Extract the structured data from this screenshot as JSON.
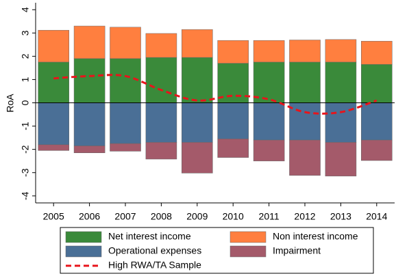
{
  "chart_data": {
    "type": "bar",
    "stacked": true,
    "y_label": "RoA",
    "categories": [
      "2005",
      "2006",
      "2007",
      "2008",
      "2009",
      "2010",
      "2011",
      "2012",
      "2013",
      "2014"
    ],
    "series": [
      {
        "name": "Net interest income",
        "color": "#3a8a3a",
        "values": [
          1.75,
          1.9,
          1.9,
          1.95,
          1.95,
          1.7,
          1.75,
          1.75,
          1.75,
          1.65
        ]
      },
      {
        "name": "Non interest income",
        "color": "#ff7f3f",
        "values": [
          1.37,
          1.4,
          1.35,
          1.03,
          1.2,
          0.98,
          0.93,
          0.95,
          0.97,
          1.0
        ]
      },
      {
        "name": "Operational expenses",
        "color": "#4a6f96",
        "values": [
          -1.8,
          -1.85,
          -1.75,
          -1.7,
          -1.7,
          -1.55,
          -1.6,
          -1.6,
          -1.7,
          -1.6
        ]
      },
      {
        "name": "Impairment",
        "color": "#a45a6a",
        "values": [
          -0.25,
          -0.3,
          -0.33,
          -0.72,
          -1.32,
          -0.8,
          -0.9,
          -1.52,
          -1.45,
          -0.88
        ]
      },
      {
        "name": "High RWA/TA Sample",
        "type": "line",
        "dashed": true,
        "color": "#e8141b",
        "values": [
          1.05,
          1.15,
          1.15,
          0.55,
          0.1,
          0.3,
          0.15,
          -0.4,
          -0.4,
          0.1
        ]
      }
    ],
    "ylim": [
      -4.3,
      4.3
    ],
    "yticks": [
      -4,
      -3,
      -2,
      -1,
      0,
      1,
      2,
      3,
      4
    ],
    "legend": "bottom"
  }
}
